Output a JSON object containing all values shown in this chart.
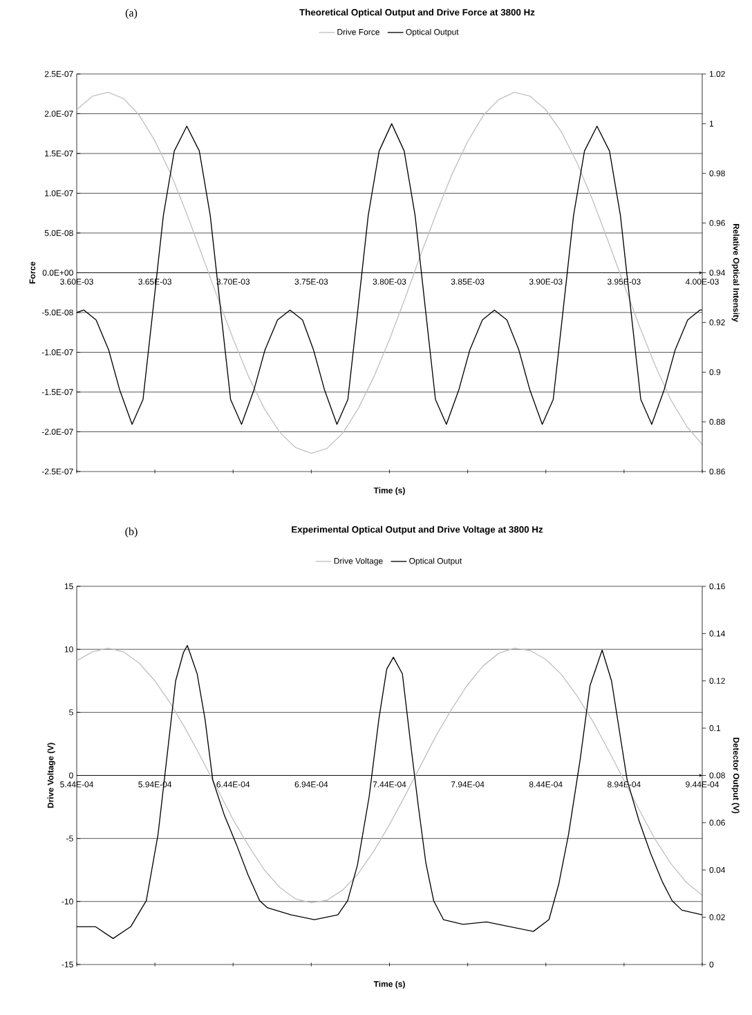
{
  "chart_data": [
    {
      "type": "line",
      "title": "Theoretical Optical Output and Drive Force at 3800 Hz",
      "annotations": [
        "(a)"
      ],
      "xlabel": "Time (s)",
      "ylabel": "Force",
      "y2label": "Relative Optical Intensity",
      "grid": "y",
      "legend": "top",
      "xlim": [
        0.0036,
        0.004
      ],
      "xticks": [
        {
          "value": 0.0036,
          "label": "3.60E-03"
        },
        {
          "value": 0.00365,
          "label": "3.65E-03"
        },
        {
          "value": 0.0037,
          "label": "3.70E-03"
        },
        {
          "value": 0.00375,
          "label": "3.75E-03"
        },
        {
          "value": 0.0038,
          "label": "3.80E-03"
        },
        {
          "value": 0.00385,
          "label": "3.85E-03"
        },
        {
          "value": 0.0039,
          "label": "3.90E-03"
        },
        {
          "value": 0.00395,
          "label": "3.95E-03"
        },
        {
          "value": 0.004,
          "label": "4.00E-03"
        }
      ],
      "ylim": [
        -2.5e-07,
        2.5e-07
      ],
      "yticks": [
        {
          "value": -2.5e-07,
          "label": "-2.5E-07"
        },
        {
          "value": -2e-07,
          "label": "-2.0E-07"
        },
        {
          "value": -1.5e-07,
          "label": "-1.5E-07"
        },
        {
          "value": -1e-07,
          "label": "-1.0E-07"
        },
        {
          "value": -5e-08,
          "label": "-5.0E-08"
        },
        {
          "value": 0,
          "label": "0.0E+00"
        },
        {
          "value": 5e-08,
          "label": "5.0E-08"
        },
        {
          "value": 1e-07,
          "label": "1.0E-07"
        },
        {
          "value": 1.5e-07,
          "label": "1.5E-07"
        },
        {
          "value": 2e-07,
          "label": "2.0E-07"
        },
        {
          "value": 2.5e-07,
          "label": "2.5E-07"
        }
      ],
      "y2lim": [
        0.86,
        1.02
      ],
      "y2ticks": [
        0.86,
        0.88,
        0.9,
        0.92,
        0.94,
        0.96,
        0.98,
        1,
        1.02
      ],
      "series": [
        {
          "name": "Drive Force",
          "color": "#c0c0c0",
          "x": [
            0.0036,
            0.00361,
            0.00362,
            0.00363,
            0.00364,
            0.00365,
            0.00366,
            0.00367,
            0.00368,
            0.00369,
            0.0037,
            0.00371,
            0.00372,
            0.00373,
            0.00374,
            0.00375,
            0.00376,
            0.00377,
            0.00378,
            0.00379,
            0.0038,
            0.00381,
            0.00382,
            0.00383,
            0.00384,
            0.00385,
            0.00386,
            0.00387,
            0.00388,
            0.00389,
            0.0039,
            0.00391,
            0.00392,
            0.00393,
            0.00394,
            0.00395,
            0.00396,
            0.00397,
            0.00398,
            0.00399,
            0.004
          ],
          "values": [
            2.05e-07,
            2.22e-07,
            2.27e-07,
            2.19e-07,
            1.98e-07,
            1.66e-07,
            1.25e-07,
            7.6e-08,
            2.3e-08,
            -3.1e-08,
            -8.3e-08,
            -1.31e-07,
            -1.71e-07,
            -2.01e-07,
            -2.2e-07,
            -2.27e-07,
            -2.21e-07,
            -2.02e-07,
            -1.71e-07,
            -1.31e-07,
            -8.4e-08,
            -3.2e-08,
            2.3e-08,
            7.5e-08,
            1.24e-07,
            1.65e-07,
            1.98e-07,
            2.18e-07,
            2.27e-07,
            2.22e-07,
            2.05e-07,
            1.77e-07,
            1.38e-07,
            9.1e-08,
            3.9e-08,
            -1.5e-08,
            -6.8e-08,
            -1.17e-07,
            -1.6e-07,
            -1.93e-07,
            -2.16e-07
          ]
        },
        {
          "name": "Optical Output",
          "color": "#000000",
          "axis": "y2",
          "x": [
            0.0036,
            0.0036046,
            0.0036124,
            0.0036204,
            0.0036274,
            0.0036354,
            0.0036424,
            0.0036484,
            0.0036554,
            0.0036624,
            0.0036704,
            0.0036784,
            0.0036854,
            0.0036924,
            0.0036984,
            0.0037054,
            0.0037134,
            0.0037204,
            0.0037284,
            0.0037364,
            0.0037444,
            0.0037514,
            0.0037584,
            0.0037664,
            0.0037734,
            0.0037794,
            0.0037864,
            0.0037934,
            0.0038014,
            0.0038094,
            0.0038164,
            0.0038234,
            0.0038294,
            0.0038364,
            0.0038444,
            0.0038514,
            0.0038594,
            0.0038671,
            0.0038751,
            0.0038827,
            0.0038897,
            0.0038977,
            0.0039047,
            0.0039107,
            0.0039177,
            0.0039247,
            0.0039327,
            0.0039407,
            0.0039477,
            0.0039547,
            0.0039607,
            0.0039677,
            0.0039757,
            0.0039827,
            0.0039907,
            0.0039985,
            0.004
          ],
          "values": [
            0.924,
            0.925,
            0.921,
            0.909,
            0.893,
            0.879,
            0.889,
            0.923,
            0.963,
            0.989,
            0.999,
            0.989,
            0.963,
            0.923,
            0.889,
            0.879,
            0.893,
            0.909,
            0.921,
            0.925,
            0.921,
            0.909,
            0.893,
            0.879,
            0.889,
            0.923,
            0.963,
            0.989,
            1.0,
            0.989,
            0.963,
            0.923,
            0.889,
            0.879,
            0.893,
            0.909,
            0.921,
            0.925,
            0.921,
            0.909,
            0.893,
            0.879,
            0.889,
            0.923,
            0.963,
            0.989,
            0.999,
            0.989,
            0.963,
            0.923,
            0.889,
            0.879,
            0.893,
            0.909,
            0.921,
            0.925,
            0.925
          ]
        }
      ]
    },
    {
      "type": "line",
      "title": "Experimental Optical Output and Drive Voltage at 3800 Hz",
      "annotations": [
        "(b)"
      ],
      "xlabel": "Time (s)",
      "ylabel": "Drive Voltage (V)",
      "y2label": "Detector Output (V)",
      "grid": "y",
      "legend": "top",
      "xlim": [
        0.000544,
        0.000944
      ],
      "xticks": [
        {
          "value": 0.000544,
          "label": "5.44E-04"
        },
        {
          "value": 0.000594,
          "label": "5.94E-04"
        },
        {
          "value": 0.000644,
          "label": "6.44E-04"
        },
        {
          "value": 0.000694,
          "label": "6.94E-04"
        },
        {
          "value": 0.000744,
          "label": "7.44E-04"
        },
        {
          "value": 0.000794,
          "label": "7.94E-04"
        },
        {
          "value": 0.000844,
          "label": "8.44E-04"
        },
        {
          "value": 0.000894,
          "label": "8.94E-04"
        },
        {
          "value": 0.000944,
          "label": "9.44E-04"
        }
      ],
      "ylim": [
        -15,
        15
      ],
      "yticks": [
        -15,
        -10,
        -5,
        0,
        5,
        10,
        15
      ],
      "y2lim": [
        0,
        0.16
      ],
      "y2ticks": [
        0,
        0.02,
        0.04,
        0.06,
        0.08,
        0.1,
        0.12,
        0.14,
        0.16
      ],
      "series": [
        {
          "name": "Drive Voltage",
          "color": "#c0c0c0",
          "x": [
            0.000544,
            0.000554,
            0.000564,
            0.000574,
            0.000584,
            0.000594,
            0.000604,
            0.000614,
            0.000624,
            0.000634,
            0.000644,
            0.000654,
            0.000664,
            0.000674,
            0.000684,
            0.000694,
            0.000704,
            0.000714,
            0.000724,
            0.000734,
            0.000744,
            0.000754,
            0.000764,
            0.000774,
            0.000784,
            0.000794,
            0.000804,
            0.000814,
            0.000824,
            0.000834,
            0.000844,
            0.000854,
            0.000864,
            0.000874,
            0.000884,
            0.000894,
            0.000904,
            0.000914,
            0.000924,
            0.000934,
            0.000944
          ],
          "values": [
            9.1,
            9.8,
            10.1,
            9.8,
            8.9,
            7.5,
            5.7,
            3.6,
            1.3,
            -1.1,
            -3.5,
            -5.6,
            -7.5,
            -8.9,
            -9.8,
            -10.1,
            -9.9,
            -9.1,
            -7.8,
            -6.0,
            -3.9,
            -1.6,
            0.8,
            3.2,
            5.3,
            7.2,
            8.7,
            9.7,
            10.1,
            9.9,
            9.2,
            8.0,
            6.3,
            4.3,
            2.0,
            -0.4,
            -2.8,
            -5.1,
            -7.0,
            -8.5,
            -9.5
          ]
        },
        {
          "name": "Optical Output",
          "color": "#000000",
          "axis": "y2",
          "x": [
            0.000544,
            0.000556,
            0.00056725,
            0.0005785,
            0.0005885,
            0.000596,
            0.00060225,
            0.00060725,
            0.00061225,
            0.00061475,
            0.000621,
            0.000626,
            0.000631,
            0.0006385,
            0.000646,
            0.0006535,
            0.000661,
            0.000666,
            0.000681,
            0.000696,
            0.000711,
            0.00071725,
            0.0007235,
            0.000731,
            0.00073725,
            0.00074225,
            0.0007465,
            0.00075225,
            0.00075725,
            0.00076225,
            0.00076725,
            0.00077225,
            0.0007785,
            0.000791,
            0.000806,
            0.000821,
            0.000836,
            0.000846,
            0.00085225,
            0.0008585,
            0.000866,
            0.00087225,
            0.00088,
            0.000886,
            0.000891,
            0.000896,
            0.0009035,
            0.000911,
            0.0009185,
            0.00092475,
            0.000931,
            0.000944
          ],
          "values": [
            0.016,
            0.016,
            0.011,
            0.016,
            0.027,
            0.055,
            0.091,
            0.12,
            0.132,
            0.135,
            0.123,
            0.104,
            0.078,
            0.063,
            0.051,
            0.038,
            0.027,
            0.024,
            0.021,
            0.019,
            0.021,
            0.027,
            0.042,
            0.071,
            0.104,
            0.125,
            0.13,
            0.123,
            0.095,
            0.068,
            0.043,
            0.027,
            0.019,
            0.017,
            0.018,
            0.016,
            0.014,
            0.019,
            0.034,
            0.055,
            0.087,
            0.118,
            0.133,
            0.12,
            0.099,
            0.078,
            0.061,
            0.047,
            0.035,
            0.027,
            0.023,
            0.021
          ]
        }
      ]
    }
  ]
}
